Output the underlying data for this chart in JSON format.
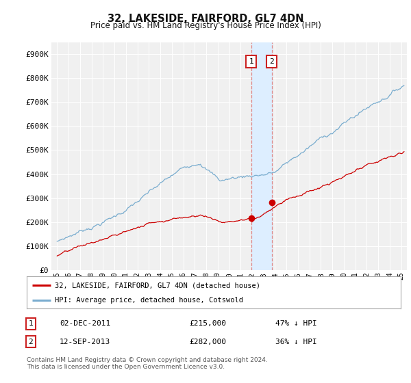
{
  "title": "32, LAKESIDE, FAIRFORD, GL7 4DN",
  "subtitle": "Price paid vs. HM Land Registry's House Price Index (HPI)",
  "legend_label_red": "32, LAKESIDE, FAIRFORD, GL7 4DN (detached house)",
  "legend_label_blue": "HPI: Average price, detached house, Cotswold",
  "transaction1_date": "02-DEC-2011",
  "transaction1_price": "£215,000",
  "transaction1_hpi": "47% ↓ HPI",
  "transaction2_date": "12-SEP-2013",
  "transaction2_price": "£282,000",
  "transaction2_hpi": "36% ↓ HPI",
  "footnote": "Contains HM Land Registry data © Crown copyright and database right 2024.\nThis data is licensed under the Open Government Licence v3.0.",
  "ylim": [
    0,
    950000
  ],
  "yticks": [
    0,
    100000,
    200000,
    300000,
    400000,
    500000,
    600000,
    700000,
    800000,
    900000
  ],
  "background_color": "#ffffff",
  "plot_bg_color": "#f0f0f0",
  "red_color": "#cc0000",
  "blue_color": "#7aadcf",
  "highlight_color": "#ddeeff",
  "transaction1_x": 2011.92,
  "transaction2_x": 2013.71,
  "xmin": 1994.5,
  "xmax": 2025.5,
  "trans1_val": 215000,
  "trans2_val": 282000
}
